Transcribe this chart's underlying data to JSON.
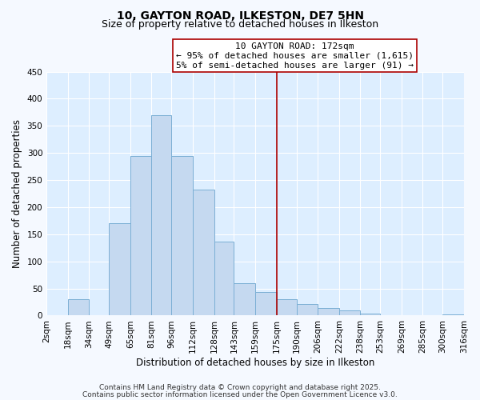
{
  "title": "10, GAYTON ROAD, ILKESTON, DE7 5HN",
  "subtitle": "Size of property relative to detached houses in Ilkeston",
  "xlabel": "Distribution of detached houses by size in Ilkeston",
  "ylabel": "Number of detached properties",
  "bar_edges": [
    2,
    18,
    34,
    49,
    65,
    81,
    96,
    112,
    128,
    143,
    159,
    175,
    190,
    206,
    222,
    238,
    253,
    269,
    285,
    300,
    316
  ],
  "bar_heights": [
    0,
    30,
    0,
    170,
    295,
    370,
    295,
    232,
    137,
    60,
    44,
    30,
    22,
    14,
    10,
    3,
    0,
    0,
    0,
    2
  ],
  "bar_color": "#c5d9f0",
  "bar_edge_color": "#7bafd4",
  "vline_x": 175,
  "vline_color": "#aa0000",
  "annotation_lines": [
    "10 GAYTON ROAD: 172sqm",
    "← 95% of detached houses are smaller (1,615)",
    "5% of semi-detached houses are larger (91) →"
  ],
  "annotation_box_color": "#ffffff",
  "annotation_box_edge": "#aa0000",
  "ylim": [
    0,
    450
  ],
  "yticks": [
    0,
    50,
    100,
    150,
    200,
    250,
    300,
    350,
    400,
    450
  ],
  "tick_labels": [
    "2sqm",
    "18sqm",
    "34sqm",
    "49sqm",
    "65sqm",
    "81sqm",
    "96sqm",
    "112sqm",
    "128sqm",
    "143sqm",
    "159sqm",
    "175sqm",
    "190sqm",
    "206sqm",
    "222sqm",
    "238sqm",
    "253sqm",
    "269sqm",
    "285sqm",
    "300sqm",
    "316sqm"
  ],
  "footer_lines": [
    "Contains HM Land Registry data © Crown copyright and database right 2025.",
    "Contains public sector information licensed under the Open Government Licence v3.0."
  ],
  "bg_color": "#f5f9ff",
  "plot_bg_color": "#ddeeff",
  "title_fontsize": 10,
  "subtitle_fontsize": 9,
  "axis_label_fontsize": 8.5,
  "tick_fontsize": 7.5,
  "footer_fontsize": 6.5,
  "annotation_fontsize": 8
}
